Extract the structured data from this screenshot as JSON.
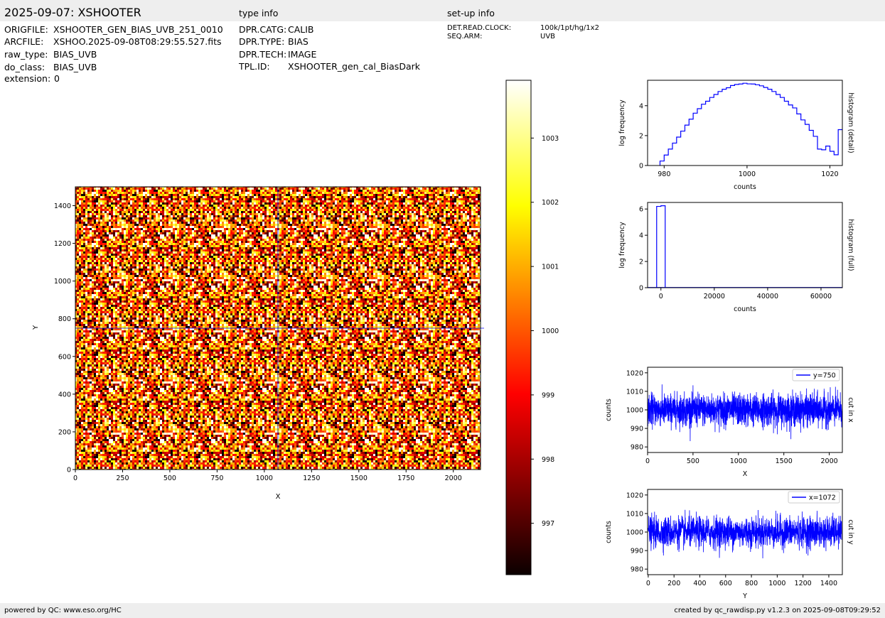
{
  "header": {
    "title": "2025-09-07: XSHOOTER",
    "type_heading": "type info",
    "setup_heading": "set-up info"
  },
  "file_info": [
    {
      "key": "ORIGFILE:",
      "value": "XSHOOTER_GEN_BIAS_UVB_251_0010"
    },
    {
      "key": "ARCFILE:",
      "value": "XSHOO.2025-09-08T08:29:55.527.fits"
    },
    {
      "key": "raw_type:",
      "value": "BIAS_UVB"
    },
    {
      "key": "do_class:",
      "value": "BIAS_UVB"
    },
    {
      "key": "extension:",
      "value": "0"
    }
  ],
  "type_info": [
    {
      "key": "DPR.CATG:",
      "value": "CALIB"
    },
    {
      "key": "DPR.TYPE:",
      "value": "BIAS"
    },
    {
      "key": "DPR.TECH:",
      "value": "IMAGE"
    },
    {
      "key": "TPL.ID:",
      "value": "XSHOOTER_gen_cal_BiasDark"
    }
  ],
  "setup_info": [
    {
      "key": "DET.READ.CLOCK:",
      "value": "100k/1pt/hg/1x2"
    },
    {
      "key": "SEQ.ARM:",
      "value": "UVB"
    }
  ],
  "footer": {
    "left": "powered by QC: www.eso.org/HC",
    "right": "created by qc_rawdisp.py v1.2.3 on 2025-09-08T09:29:52"
  },
  "chart_data": [
    {
      "type": "heatmap",
      "xlabel": "X",
      "ylabel": "Y",
      "xlim": [
        0,
        2144
      ],
      "ylim": [
        0,
        1500
      ],
      "xticks": [
        0,
        250,
        500,
        750,
        1000,
        1250,
        1500,
        1750,
        2000
      ],
      "yticks": [
        0,
        200,
        400,
        600,
        800,
        1000,
        1200,
        1400
      ],
      "crosshair": {
        "x": 1072,
        "y": 750
      },
      "colormap": "hot",
      "value_range": [
        996.2,
        1003.9
      ],
      "colorbar_ticks": [
        997,
        998,
        999,
        1000,
        1001,
        1002,
        1003
      ],
      "crosshair_color": "#0000ff"
    },
    {
      "type": "line",
      "subtype": "step-histogram",
      "side_label": "histogram (detail)",
      "xlabel": "counts",
      "ylabel": "log frequency",
      "xlim": [
        976,
        1023
      ],
      "ylim": [
        0,
        5.7
      ],
      "xticks": [
        980,
        1000,
        1020
      ],
      "yticks": [
        0,
        2,
        4
      ],
      "bin_edges_start": 979,
      "bin_width": 1,
      "values": [
        0.3,
        0.7,
        1.1,
        1.5,
        1.9,
        2.3,
        2.7,
        3.1,
        3.5,
        3.8,
        4.1,
        4.3,
        4.55,
        4.75,
        4.95,
        5.1,
        5.2,
        5.35,
        5.42,
        5.45,
        5.5,
        5.46,
        5.45,
        5.4,
        5.33,
        5.22,
        5.1,
        4.95,
        4.75,
        4.55,
        4.3,
        4.05,
        3.85,
        3.45,
        3.05,
        2.75,
        2.35,
        1.95,
        1.1,
        1.05,
        1.3,
        0.95,
        0.72,
        2.4
      ],
      "color": "#0000ff"
    },
    {
      "type": "line",
      "subtype": "step-histogram",
      "side_label": "histogram (full)",
      "xlabel": "counts",
      "ylabel": "log frequency",
      "xlim": [
        -5000,
        68000
      ],
      "ylim": [
        0,
        6.5
      ],
      "xticks": [
        0,
        20000,
        40000,
        60000
      ],
      "yticks": [
        0,
        2,
        4,
        6
      ],
      "x": [
        -1600,
        -1600,
        0,
        0,
        1600,
        1600
      ],
      "y": [
        0,
        6.2,
        6.2,
        6.25,
        6.25,
        0
      ],
      "color": "#0000ff"
    },
    {
      "type": "line",
      "side_label": "cut in x",
      "xlabel": "X",
      "ylabel": "counts",
      "xlim": [
        0,
        2144
      ],
      "ylim": [
        977,
        1023
      ],
      "xticks": [
        0,
        500,
        1000,
        1500,
        2000
      ],
      "yticks": [
        980,
        990,
        1000,
        1010,
        1020
      ],
      "series": [
        {
          "name": "y=750",
          "mean": 1000,
          "noise_sigma": 4.2,
          "n_points": 2144
        }
      ],
      "color": "#0000ff"
    },
    {
      "type": "line",
      "side_label": "cut in y",
      "xlabel": "Y",
      "ylabel": "counts",
      "xlim": [
        -5,
        1505
      ],
      "ylim": [
        977,
        1023
      ],
      "xticks": [
        0,
        200,
        400,
        600,
        800,
        1000,
        1200,
        1400
      ],
      "yticks": [
        980,
        990,
        1000,
        1010,
        1020
      ],
      "series": [
        {
          "name": "x=1072",
          "mean": 1000,
          "noise_sigma": 4.2,
          "n_points": 1500
        }
      ],
      "color": "#0000ff"
    }
  ]
}
